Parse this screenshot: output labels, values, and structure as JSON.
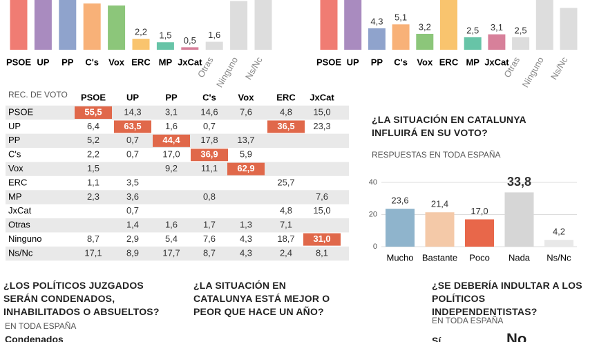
{
  "chart_data": [
    {
      "type": "bar",
      "categories": [
        "PSOE",
        "UP",
        "PP",
        "C's",
        "Vox",
        "ERC",
        "MP",
        "JxCat",
        "Otras",
        "Ninguno",
        "Ns/Nc"
      ],
      "values": [
        28,
        12,
        17,
        9.3,
        8.9,
        2.2,
        1.5,
        0.5,
        1.6,
        9.8,
        15
      ],
      "value_labels": [
        null,
        null,
        null,
        null,
        null,
        "2,2",
        "1,5",
        "0,5",
        "1,6",
        null,
        null
      ],
      "colors": [
        "#f07c73",
        "#a98bbf",
        "#8fa3cc",
        "#f8b178",
        "#8cc67a",
        "#f9c46e",
        "#67c4a7",
        "#d7809a",
        "#dddddd",
        "#dddddd",
        "#dddddd"
      ]
    },
    {
      "type": "bar",
      "categories": [
        "PSOE",
        "UP",
        "PP",
        "C's",
        "Vox",
        "ERC",
        "MP",
        "JxCat",
        "Otras",
        "Ninguno",
        "Ns/Nc"
      ],
      "values": [
        20,
        15,
        4.3,
        5.1,
        3.2,
        12,
        2.5,
        3.1,
        2.5,
        15,
        8.4
      ],
      "value_labels": [
        null,
        null,
        "4,3",
        "5,1",
        "3,2",
        null,
        "2,5",
        "3,1",
        "2,5",
        null,
        null
      ],
      "colors": [
        "#f07c73",
        "#a98bbf",
        "#8fa3cc",
        "#f8b178",
        "#8cc67a",
        "#f9c46e",
        "#67c4a7",
        "#d7809a",
        "#dddddd",
        "#dddddd",
        "#dddddd"
      ]
    },
    {
      "type": "bar",
      "title": "¿LA SITUACIÓN EN CATALUNYA INFLUIRÁ EN SU VOTO?",
      "subtitle": "RESPUESTAS EN TODA ESPAÑA",
      "categories": [
        "Mucho",
        "Bastante",
        "Poco",
        "Nada",
        "Ns/Nc"
      ],
      "values": [
        23.6,
        21.4,
        17.0,
        33.8,
        4.2
      ],
      "value_labels": [
        "23,6",
        "21,4",
        "17,0",
        "33,8",
        "4,2"
      ],
      "colors": [
        "#8fb4cc",
        "#f4c9a8",
        "#e8674a",
        "#d6d6d6",
        "#e8e8e8"
      ],
      "ylim": [
        0,
        40
      ],
      "yticks": [
        0,
        20,
        40
      ],
      "grid": true
    }
  ],
  "table": {
    "title": "REC. DE VOTO",
    "columns": [
      "PSOE",
      "UP",
      "PP",
      "C's",
      "Vox",
      "ERC",
      "JxCat"
    ],
    "rows": [
      {
        "label": "PSOE",
        "cells": [
          "55,5",
          "14,3",
          "3,1",
          "14,6",
          "7,6",
          "4,8",
          "15,0"
        ]
      },
      {
        "label": "UP",
        "cells": [
          "6,4",
          "63,5",
          "1,6",
          "0,7",
          null,
          "36,5",
          "23,3"
        ]
      },
      {
        "label": "PP",
        "cells": [
          "5,2",
          "0,7",
          "44,4",
          "17,8",
          "13,7",
          null,
          null
        ]
      },
      {
        "label": "C's",
        "cells": [
          "2,2",
          "0,7",
          "17,0",
          "36,9",
          "5,9",
          null,
          null
        ]
      },
      {
        "label": "Vox",
        "cells": [
          "1,5",
          null,
          "9,2",
          "11,1",
          "62,9",
          null,
          null
        ]
      },
      {
        "label": "ERC",
        "cells": [
          "1,1",
          "3,5",
          null,
          null,
          null,
          "25,7",
          null
        ]
      },
      {
        "label": "MP",
        "cells": [
          "2,3",
          "3,6",
          null,
          "0,8",
          null,
          null,
          "7,6"
        ]
      },
      {
        "label": "JxCat",
        "cells": [
          null,
          "0,7",
          null,
          null,
          null,
          "4,8",
          "15,0"
        ]
      },
      {
        "label": "Otras",
        "cells": [
          null,
          "1,4",
          "1,6",
          "1,7",
          "1,3",
          "7,1",
          null
        ]
      },
      {
        "label": "Ninguno",
        "cells": [
          "8,7",
          "2,9",
          "5,4",
          "7,6",
          "4,3",
          "18,7",
          "31,0"
        ]
      },
      {
        "label": "Ns/Nc",
        "cells": [
          "17,1",
          "8,9",
          "17,7",
          "8,7",
          "4,3",
          "2,4",
          "8,1"
        ]
      }
    ],
    "highlight": [
      [
        0,
        0
      ],
      [
        1,
        1
      ],
      [
        2,
        2
      ],
      [
        3,
        3
      ],
      [
        4,
        4
      ],
      [
        1,
        5
      ],
      [
        9,
        6
      ]
    ]
  },
  "questions": [
    {
      "title": "¿LOS POLÍTICOS JUZGADOS SERÁN CONDENADOS, INHABILITADOS O ABSUELTOS?",
      "subtitle": "EN TODA ESPAÑA",
      "answers": [
        "Condenados"
      ]
    },
    {
      "title": "¿LA SITUACIÓN EN CATALUNYA ESTÁ MEJOR O PEOR QUE HACE UN AÑO?"
    },
    {
      "title": "¿SE DEBERÍA INDULTAR A LOS POLÍTICOS INDEPENDENTISTAS?",
      "subtitle": "EN TODA ESPAÑA",
      "answers": [
        "Sí",
        "No"
      ]
    }
  ]
}
